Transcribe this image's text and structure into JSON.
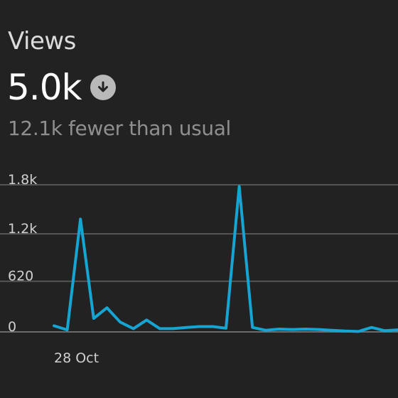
{
  "metric": {
    "title": "Views",
    "value": "5.0k",
    "trend_icon": "down-arrow-circle-icon",
    "subtitle": "12.1k fewer than usual"
  },
  "colors": {
    "background": "#222222",
    "line": "#16a5d3",
    "trend_icon_bg": "#b9b9b9"
  },
  "chart_data": {
    "type": "line",
    "title": "",
    "xlabel": "",
    "ylabel": "",
    "ylim": [
      0,
      1800
    ],
    "yticks": [
      "0",
      "620",
      "1.2k",
      "1.8k"
    ],
    "ytick_values": [
      0,
      620,
      1200,
      1800
    ],
    "xtick_labels": [
      "28 Oct"
    ],
    "grid": true,
    "series": [
      {
        "values": [
          75,
          25,
          1380,
          165,
          295,
          120,
          40,
          145,
          40,
          40,
          55,
          65,
          65,
          45,
          1780,
          55,
          20,
          35,
          30,
          35,
          30,
          20,
          10,
          5,
          55,
          15,
          25
        ]
      }
    ]
  }
}
